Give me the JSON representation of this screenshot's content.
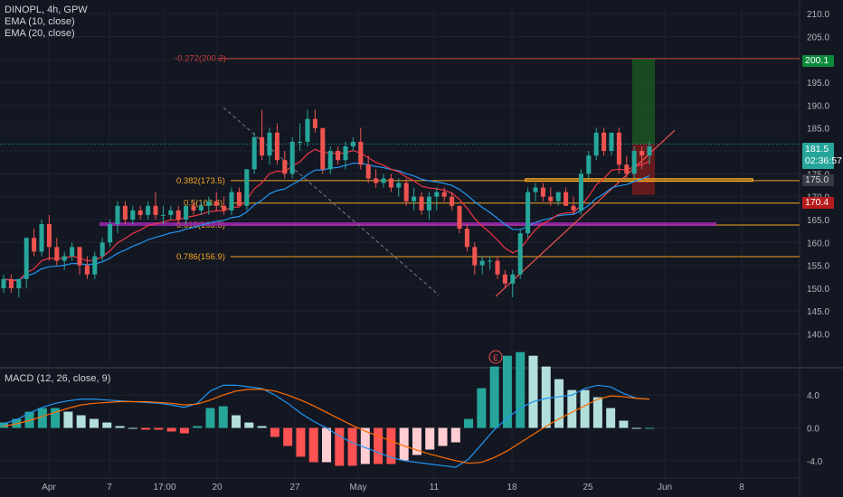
{
  "header": {
    "symbol_line": "DINOPL, 4h, GPW",
    "ema10": "EMA (10, close)",
    "ema20": "EMA (20, close)"
  },
  "macd_legend": "MACD (12, 26, close, 9)",
  "price_tags": {
    "target": "200.1",
    "last": "181.5",
    "countdown": "02:36:57",
    "level175": "175.0",
    "stop": "170.4"
  },
  "earnings_marker": "E",
  "colors": {
    "background": "#131722",
    "up": "#26a69a",
    "down": "#ef5350",
    "ema10": "#f23645",
    "ema20": "#2196f3",
    "fib": "#f5a623",
    "fib_ext": "#c43c3c",
    "fib_618": "#9c27b0",
    "macd_line": "#2196f3",
    "signal_line": "#ff6d00",
    "target_zone": "#1b5e20",
    "stop_zone": "#801d1d"
  },
  "chart_data": [
    {
      "type": "candlestick",
      "title": "DINOPL, 4h, GPW",
      "ylim": [
        133,
        212
      ],
      "y_ticks": [
        "210.0",
        "205.0",
        "200.0",
        "195.0",
        "190.0",
        "185.0",
        "180.0",
        "175.0",
        "170.0",
        "165.0",
        "160.0",
        "155.0",
        "150.0",
        "145.0",
        "140.0"
      ],
      "x_ticks": [
        "Apr",
        "7",
        "17:00",
        "20",
        "27",
        "May",
        "11",
        "18",
        "25",
        "Jun",
        "8"
      ],
      "fib_levels": [
        {
          "label": "-0.272(200.2)",
          "value": 200.2
        },
        {
          "label": "0.382(173.5)",
          "value": 173.5
        },
        {
          "label": "0.5(168.6)",
          "value": 168.6
        },
        {
          "label": "0.618(163.8)",
          "value": 163.8
        },
        {
          "label": "0.786(156.9)",
          "value": 156.9
        }
      ],
      "target": 200.1,
      "stop": 170.4,
      "last": 181.5,
      "support_zone": [
        173.4,
        173.9
      ],
      "candles": [
        [
          150,
          153,
          149,
          152
        ],
        [
          152,
          153,
          149,
          150
        ],
        [
          150,
          152,
          148,
          152
        ],
        [
          152,
          161,
          150,
          161
        ],
        [
          161,
          163,
          157,
          158
        ],
        [
          158,
          165,
          157,
          164
        ],
        [
          164,
          166,
          156,
          159
        ],
        [
          159,
          161,
          155,
          156
        ],
        [
          156,
          158,
          154,
          157
        ],
        [
          157,
          160,
          156,
          159
        ],
        [
          159,
          159,
          153,
          155
        ],
        [
          155,
          157,
          152,
          153
        ],
        [
          153,
          158,
          152,
          157
        ],
        [
          157,
          161,
          156,
          160
        ],
        [
          160,
          165,
          159,
          164
        ],
        [
          164,
          169,
          162,
          168
        ],
        [
          168,
          169,
          164,
          165
        ],
        [
          165,
          168,
          164,
          167
        ],
        [
          167,
          168,
          165,
          166
        ],
        [
          166,
          169,
          165,
          168
        ],
        [
          168,
          171,
          165,
          166
        ],
        [
          166,
          168,
          164,
          166
        ],
        [
          166,
          168,
          165,
          167
        ],
        [
          167,
          168,
          164,
          165
        ],
        [
          165,
          168,
          164,
          168
        ],
        [
          168,
          169,
          166,
          167
        ],
        [
          167,
          169,
          166,
          168
        ],
        [
          168,
          170,
          166,
          169
        ],
        [
          169,
          171,
          167,
          168
        ],
        [
          168,
          170,
          166,
          167
        ],
        [
          167,
          172,
          166,
          171
        ],
        [
          171,
          172,
          168,
          168
        ],
        [
          168,
          176,
          167,
          176
        ],
        [
          176,
          184,
          175,
          183
        ],
        [
          183,
          189,
          178,
          179
        ],
        [
          179,
          185,
          177,
          184
        ],
        [
          184,
          186,
          177,
          178
        ],
        [
          178,
          180,
          174,
          175
        ],
        [
          175,
          183,
          174,
          182
        ],
        [
          182,
          186,
          180,
          182
        ],
        [
          182,
          189,
          181,
          187
        ],
        [
          187,
          189,
          184,
          185
        ],
        [
          185,
          185,
          175,
          176
        ],
        [
          176,
          181,
          175,
          180
        ],
        [
          180,
          181,
          177,
          178
        ],
        [
          178,
          182,
          176,
          181
        ],
        [
          181,
          183,
          180,
          182
        ],
        [
          182,
          185,
          176,
          177
        ],
        [
          177,
          179,
          173,
          174
        ],
        [
          174,
          176,
          172,
          173
        ],
        [
          173,
          175,
          172,
          174
        ],
        [
          174,
          175,
          171,
          172
        ],
        [
          172,
          174,
          170,
          173
        ],
        [
          173,
          174,
          168,
          169
        ],
        [
          169,
          172,
          167,
          170
        ],
        [
          170,
          171,
          166,
          167
        ],
        [
          167,
          171,
          165,
          170
        ],
        [
          170,
          172,
          167,
          171
        ],
        [
          171,
          172,
          169,
          170
        ],
        [
          170,
          171,
          167,
          168
        ],
        [
          168,
          168,
          162,
          163
        ],
        [
          163,
          164,
          158,
          159
        ],
        [
          159,
          160,
          153,
          155
        ],
        [
          155,
          157,
          153,
          156
        ],
        [
          156,
          157,
          154,
          156
        ],
        [
          156,
          157,
          152,
          153
        ],
        [
          153,
          154,
          150,
          151
        ],
        [
          151,
          154,
          148,
          153
        ],
        [
          153,
          163,
          152,
          162
        ],
        [
          162,
          172,
          161,
          171
        ],
        [
          171,
          173,
          169,
          172
        ],
        [
          172,
          173,
          169,
          170
        ],
        [
          170,
          172,
          168,
          169
        ],
        [
          169,
          171,
          168,
          171
        ],
        [
          171,
          172,
          168,
          168
        ],
        [
          168,
          170,
          166,
          167
        ],
        [
          167,
          176,
          166,
          175
        ],
        [
          175,
          180,
          174,
          179
        ],
        [
          179,
          185,
          178,
          184
        ],
        [
          184,
          185,
          179,
          180
        ],
        [
          180,
          184,
          179,
          184
        ],
        [
          184,
          185,
          175,
          177
        ],
        [
          177,
          179,
          174,
          175
        ],
        [
          175,
          181,
          174,
          180
        ],
        [
          180,
          181,
          176,
          179
        ],
        [
          179,
          182,
          177,
          181
        ]
      ]
    },
    {
      "type": "bar",
      "title": "MACD (12, 26, close, 9)",
      "ylim": [
        -6,
        7
      ],
      "y_ticks": [
        "4.0",
        "0.0",
        "-4.0"
      ],
      "series": [
        {
          "name": "MACD",
          "values": [
            0.5,
            1.0,
            1.8,
            2.5,
            3.0,
            3.3,
            3.5,
            3.5,
            3.4,
            3.3,
            3.2,
            3.1,
            3.0,
            2.8,
            2.5,
            3.0,
            4.5,
            5.2,
            5.2,
            5.0,
            4.8,
            4.0,
            3.0,
            1.8,
            0.8,
            0.0,
            -1.0,
            -1.8,
            -2.4,
            -3.0,
            -3.6,
            -4.0,
            -4.2,
            -4.4,
            -4.6,
            -4.8,
            -3.8,
            -2.0,
            -0.2,
            1.2,
            2.4,
            3.2,
            3.6,
            3.8,
            4.0,
            4.8,
            5.2,
            5.0,
            4.2,
            3.6,
            3.5
          ]
        },
        {
          "name": "Signal",
          "values": [
            0.2,
            0.5,
            0.9,
            1.4,
            1.9,
            2.4,
            2.8,
            3.0,
            3.1,
            3.2,
            3.2,
            3.2,
            3.1,
            3.0,
            2.8,
            2.9,
            3.4,
            4.0,
            4.5,
            4.7,
            4.7,
            4.5,
            4.0,
            3.4,
            2.7,
            1.9,
            1.1,
            0.3,
            -0.4,
            -1.0,
            -1.6,
            -2.2,
            -2.7,
            -3.2,
            -3.6,
            -4.0,
            -4.3,
            -4.2,
            -3.6,
            -2.8,
            -1.8,
            -0.8,
            0.2,
            1.1,
            1.9,
            2.7,
            3.5,
            3.9,
            3.8,
            3.6,
            3.5
          ]
        }
      ]
    }
  ]
}
